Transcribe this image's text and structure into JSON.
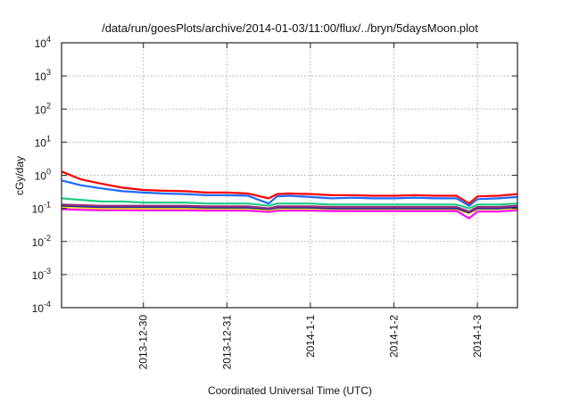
{
  "chart_data": {
    "type": "line",
    "title": "/data/run/goesPlots/archive/2014-01-03/11:00/flux/../bryn/5daysMoon.plot",
    "xlabel": "Coordinated Universal Time (UTC)",
    "ylabel": "cGy/day",
    "yscale": "log",
    "ylim": [
      0.0001,
      10000
    ],
    "xlim_days_from_2013_12_30": [
      -0.98,
      4.48
    ],
    "grid": true,
    "yticks": [
      {
        "base": "10",
        "exp": "4",
        "value": 10000
      },
      {
        "base": "10",
        "exp": "3",
        "value": 1000
      },
      {
        "base": "10",
        "exp": "2",
        "value": 100
      },
      {
        "base": "10",
        "exp": "1",
        "value": 10
      },
      {
        "base": "10",
        "exp": "0",
        "value": 1
      },
      {
        "base": "10",
        "exp": "-1",
        "value": 0.1
      },
      {
        "base": "10",
        "exp": "-2",
        "value": 0.01
      },
      {
        "base": "10",
        "exp": "-3",
        "value": 0.001
      },
      {
        "base": "10",
        "exp": "-4",
        "value": 0.0001
      }
    ],
    "xticks": [
      {
        "label": "2013-12-30",
        "value": 0
      },
      {
        "label": "2013-12-31",
        "value": 1
      },
      {
        "label": "2014-1-1",
        "value": 2
      },
      {
        "label": "2014-1-2",
        "value": 3
      },
      {
        "label": "2014-1-3",
        "value": 4
      }
    ],
    "x": [
      -0.98,
      -0.75,
      -0.5,
      -0.25,
      0,
      0.25,
      0.5,
      0.75,
      1,
      1.25,
      1.5,
      1.6,
      1.75,
      2,
      2.25,
      2.5,
      2.75,
      3,
      3.25,
      3.5,
      3.75,
      3.9,
      4,
      4.25,
      4.48
    ],
    "series": [
      {
        "name": "red",
        "color": "#ff0000",
        "values": [
          1.3,
          0.75,
          0.55,
          0.42,
          0.36,
          0.34,
          0.33,
          0.3,
          0.3,
          0.28,
          0.2,
          0.27,
          0.28,
          0.27,
          0.25,
          0.25,
          0.24,
          0.24,
          0.25,
          0.24,
          0.24,
          0.14,
          0.23,
          0.24,
          0.27
        ]
      },
      {
        "name": "blue",
        "color": "#1a6cff",
        "values": [
          0.7,
          0.5,
          0.4,
          0.33,
          0.3,
          0.28,
          0.27,
          0.25,
          0.25,
          0.24,
          0.14,
          0.23,
          0.24,
          0.22,
          0.2,
          0.21,
          0.2,
          0.2,
          0.21,
          0.2,
          0.2,
          0.12,
          0.19,
          0.2,
          0.22
        ]
      },
      {
        "name": "green",
        "color": "#22cc88",
        "values": [
          0.2,
          0.18,
          0.16,
          0.16,
          0.15,
          0.15,
          0.15,
          0.14,
          0.14,
          0.14,
          0.12,
          0.14,
          0.14,
          0.14,
          0.13,
          0.13,
          0.13,
          0.13,
          0.13,
          0.13,
          0.13,
          0.1,
          0.13,
          0.13,
          0.14
        ]
      },
      {
        "name": "purple",
        "color": "#993377",
        "values": [
          0.13,
          0.125,
          0.12,
          0.12,
          0.12,
          0.12,
          0.12,
          0.115,
          0.115,
          0.115,
          0.1,
          0.115,
          0.115,
          0.115,
          0.11,
          0.11,
          0.11,
          0.11,
          0.11,
          0.11,
          0.11,
          0.08,
          0.11,
          0.11,
          0.12
        ]
      },
      {
        "name": "navy",
        "color": "#2222aa",
        "values": [
          0.12,
          0.115,
          0.11,
          0.11,
          0.11,
          0.11,
          0.11,
          0.105,
          0.105,
          0.105,
          0.095,
          0.105,
          0.105,
          0.105,
          0.1,
          0.1,
          0.1,
          0.1,
          0.1,
          0.1,
          0.1,
          0.075,
          0.1,
          0.1,
          0.11
        ]
      },
      {
        "name": "yellow",
        "color": "#ffee00",
        "values": [
          0.11,
          0.105,
          0.1,
          0.1,
          0.1,
          0.1,
          0.1,
          0.098,
          0.098,
          0.098,
          0.088,
          0.098,
          0.098,
          0.098,
          0.095,
          0.095,
          0.095,
          0.095,
          0.095,
          0.095,
          0.095,
          0.07,
          0.095,
          0.095,
          0.1
        ]
      },
      {
        "name": "magenta",
        "color": "#ff00ff",
        "values": [
          0.095,
          0.09,
          0.088,
          0.088,
          0.087,
          0.087,
          0.087,
          0.085,
          0.085,
          0.085,
          0.078,
          0.085,
          0.085,
          0.085,
          0.083,
          0.083,
          0.083,
          0.083,
          0.083,
          0.083,
          0.083,
          0.05,
          0.08,
          0.08,
          0.088
        ]
      }
    ]
  }
}
